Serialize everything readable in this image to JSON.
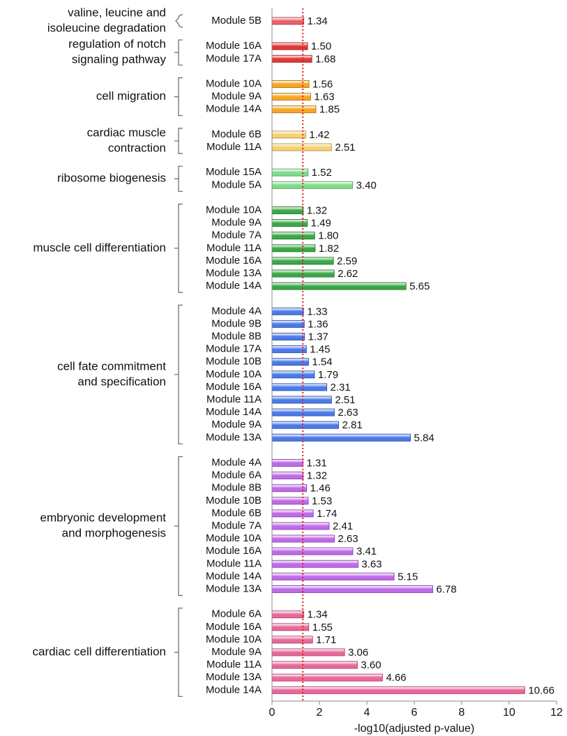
{
  "chart_data": {
    "type": "grouped-hbar",
    "xlabel": "-log10(adjusted p-value)",
    "xlim": [
      0,
      12
    ],
    "xticks": [
      0,
      2,
      4,
      6,
      8,
      10,
      12
    ],
    "threshold": 1.3,
    "threshold_color": "#e02020",
    "groups": [
      {
        "label": [
          "valine, leucine and",
          "isoleucine degradation"
        ],
        "color": "#e8606a",
        "categories": [
          "Module 5B"
        ],
        "values": [
          1.34
        ],
        "value_labels": [
          "1.34"
        ]
      },
      {
        "label": [
          "regulation of notch",
          "signaling pathway"
        ],
        "color": "#e03838",
        "categories": [
          "Module 16A",
          "Module 17A"
        ],
        "values": [
          1.5,
          1.68
        ],
        "value_labels": [
          "1.50",
          "1.68"
        ]
      },
      {
        "label": [
          "cell migration"
        ],
        "color": "#f5a623",
        "categories": [
          "Module 10A",
          "Module 9A",
          "Module 14A"
        ],
        "values": [
          1.56,
          1.63,
          1.85
        ],
        "value_labels": [
          "1.56",
          "1.63",
          "1.85"
        ]
      },
      {
        "label": [
          "cardiac muscle",
          "contraction"
        ],
        "color": "#f7d070",
        "categories": [
          "Module 6B",
          "Module 11A"
        ],
        "values": [
          1.42,
          2.51
        ],
        "value_labels": [
          "1.42",
          "2.51"
        ]
      },
      {
        "label": [
          "ribosome biogenesis"
        ],
        "color": "#7edc88",
        "categories": [
          "Module 15A",
          "Module 5A"
        ],
        "values": [
          1.52,
          3.4
        ],
        "value_labels": [
          "1.52",
          "3.40"
        ]
      },
      {
        "label": [
          "muscle cell differentiation"
        ],
        "color": "#3aa848",
        "categories": [
          "Module 10A",
          "Module 9A",
          "Module 7A",
          "Module 11A",
          "Module 16A",
          "Module 13A",
          "Module 14A"
        ],
        "values": [
          1.32,
          1.49,
          1.8,
          1.82,
          2.59,
          2.62,
          5.65
        ],
        "value_labels": [
          "1.32",
          "1.49",
          "1.80",
          "1.82",
          "2.59",
          "2.62",
          "5.65"
        ]
      },
      {
        "label": [
          "cell fate commitment",
          "and specification"
        ],
        "color": "#4a7ae8",
        "categories": [
          "Module 4A",
          "Module 9B",
          "Module 8B",
          "Module 17A",
          "Module 10B",
          "Module 10A",
          "Module 16A",
          "Module 11A",
          "Module 14A",
          "Module 9A",
          "Module 13A"
        ],
        "values": [
          1.33,
          1.36,
          1.37,
          1.45,
          1.54,
          1.79,
          2.31,
          2.51,
          2.63,
          2.81,
          5.84
        ],
        "value_labels": [
          "1.33",
          "1.36",
          "1.37",
          "1.45",
          "1.54",
          "1.79",
          "2.31",
          "2.51",
          "2.63",
          "2.81",
          "5.84"
        ]
      },
      {
        "label": [
          "embryonic development",
          "and morphogenesis"
        ],
        "color": "#c06ae8",
        "categories": [
          "Module 4A",
          "Module 6A",
          "Module 8B",
          "Module 10B",
          "Module 6B",
          "Module 7A",
          "Module 10A",
          "Module 16A",
          "Module 11A",
          "Module 14A",
          "Module 13A"
        ],
        "values": [
          1.31,
          1.32,
          1.46,
          1.53,
          1.74,
          2.41,
          2.63,
          3.41,
          3.63,
          5.15,
          6.78
        ],
        "value_labels": [
          "1.31",
          "1.32",
          "1.46",
          "1.53",
          "1.74",
          "2.41",
          "2.63",
          "3.41",
          "3.63",
          "5.15",
          "6.78"
        ]
      },
      {
        "label": [
          "cardiac cell differentiation"
        ],
        "color": "#e8689a",
        "categories": [
          "Module 6A",
          "Module 16A",
          "Module 10A",
          "Module 9A",
          "Module 11A",
          "Module 13A",
          "Module 14A"
        ],
        "values": [
          1.34,
          1.55,
          1.71,
          3.06,
          3.6,
          4.66,
          10.66
        ],
        "value_labels": [
          "1.34",
          "1.55",
          "1.71",
          "3.06",
          "3.60",
          "4.66",
          "10.66"
        ]
      }
    ]
  }
}
